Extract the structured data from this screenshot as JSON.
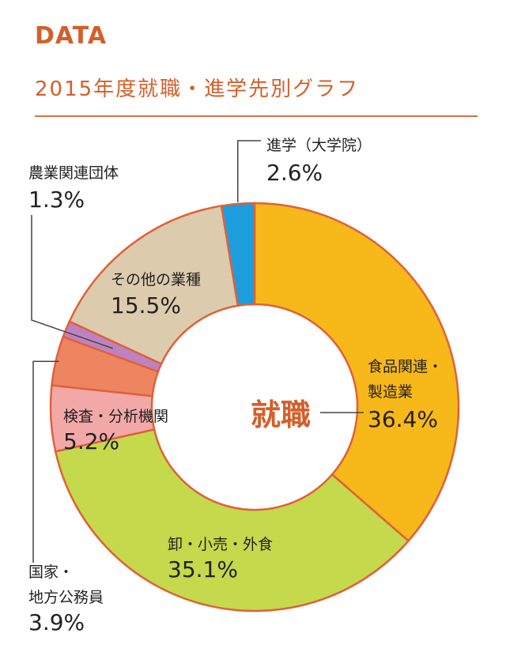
{
  "header": {
    "heading": "DATA",
    "title": "2015年度就職・進学先別グラフ"
  },
  "colors": {
    "accent": "#d35f2a",
    "slice_border": "#e0603a"
  },
  "chart_data": {
    "type": "pie",
    "style": "donut",
    "title": "2015年度就職・進学先別グラフ",
    "center_label": "就職",
    "slices": [
      {
        "label": "食品関連・製造業",
        "value": 36.4,
        "value_label": "36.4%",
        "color": "#f7b819"
      },
      {
        "label": "卸・小売・外食",
        "value": 35.1,
        "value_label": "35.1%",
        "color": "#c4d94b"
      },
      {
        "label": "検査・分析機関",
        "value": 5.2,
        "value_label": "5.2%",
        "color": "#f3a8a8"
      },
      {
        "label": "国家・地方公務員",
        "value": 3.9,
        "value_label": "3.9%",
        "color": "#ee8561"
      },
      {
        "label": "農業関連団体",
        "value": 1.3,
        "value_label": "1.3%",
        "color": "#bd83c0"
      },
      {
        "label": "その他の業種",
        "value": 15.5,
        "value_label": "15.5%",
        "color": "#dccbad"
      },
      {
        "label": "進学（大学院）",
        "value": 2.6,
        "value_label": "2.6%",
        "color": "#1b9edb"
      }
    ]
  }
}
